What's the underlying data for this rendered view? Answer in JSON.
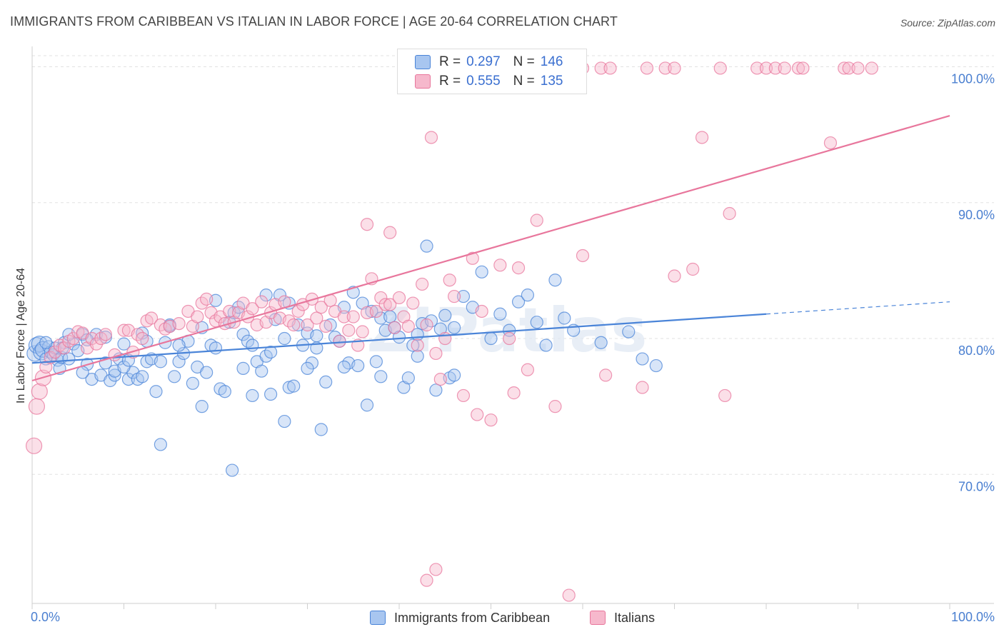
{
  "title": "IMMIGRANTS FROM CARIBBEAN VS ITALIAN IN LABOR FORCE | AGE 20-64 CORRELATION CHART",
  "source": "Source: ZipAtlas.com",
  "watermark": "ZIPatlas",
  "legend": {
    "rows": [
      {
        "r_label": "R =",
        "r_value": "0.297",
        "n_label": "N =",
        "n_value": "146"
      },
      {
        "r_label": "R =",
        "r_value": "0.555",
        "n_label": "N =",
        "n_value": "135"
      }
    ]
  },
  "bottom_legend": [
    "Immigrants from Caribbean",
    "Italians"
  ],
  "chart_data": {
    "type": "scatter",
    "title": "IMMIGRANTS FROM CARIBBEAN VS ITALIAN IN LABOR FORCE | AGE 20-64 CORRELATION CHART",
    "xlabel": "",
    "ylabel": "In Labor Force | Age 20-64",
    "xlim": [
      0,
      100
    ],
    "ylim": [
      60.5,
      101.5
    ],
    "x_tick_labels": [
      "0.0%",
      "100.0%"
    ],
    "y_ticks": [
      70,
      80,
      90,
      100
    ],
    "y_tick_labels": [
      "70.0%",
      "80.0%",
      "90.0%",
      "100.0%"
    ],
    "grid": "horizontal dashed",
    "legend_position": "top-center",
    "colors": {
      "caribbean": "#4a84d8",
      "italians": "#e8769c",
      "caribbean_fill": "#a8c6f0",
      "italians_fill": "#f6b8cc",
      "tick_label": "#4a7fd0"
    },
    "series": [
      {
        "name": "Immigrants from Caribbean",
        "r": 0.297,
        "n": 146,
        "trend": {
          "x0": 0,
          "y0": 78.2,
          "x1": 80,
          "y1": 81.8,
          "dash_x1": 100,
          "dash_y1": 82.7
        },
        "points": [
          [
            0.3,
            78.9
          ],
          [
            0.5,
            79.5
          ],
          [
            0.8,
            79.6
          ],
          [
            1.0,
            79.0
          ],
          [
            1.2,
            79.2
          ],
          [
            1.5,
            78.5
          ],
          [
            1.8,
            79.4
          ],
          [
            2.0,
            79.0
          ],
          [
            2.3,
            78.8
          ],
          [
            2.5,
            79.3
          ],
          [
            2.8,
            78.4
          ],
          [
            3.0,
            77.8
          ],
          [
            3.2,
            78.6
          ],
          [
            3.5,
            79.7
          ],
          [
            4.0,
            78.5
          ],
          [
            4.5,
            79.6
          ],
          [
            5.0,
            79.1
          ],
          [
            5.5,
            80.3
          ],
          [
            6.0,
            78.1
          ],
          [
            6.5,
            77.0
          ],
          [
            7.0,
            80.3
          ],
          [
            7.5,
            77.3
          ],
          [
            8.0,
            78.2
          ],
          [
            8.5,
            76.9
          ],
          [
            9.0,
            77.3
          ],
          [
            9.5,
            78.5
          ],
          [
            10.0,
            79.6
          ],
          [
            10.5,
            77.0
          ],
          [
            11.0,
            77.5
          ],
          [
            11.5,
            77.0
          ],
          [
            12.0,
            77.2
          ],
          [
            12.5,
            78.3
          ],
          [
            13.0,
            78.5
          ],
          [
            13.5,
            76.1
          ],
          [
            14.0,
            78.3
          ],
          [
            14.5,
            79.7
          ],
          [
            15.0,
            80.9
          ],
          [
            15.5,
            77.2
          ],
          [
            16.0,
            78.3
          ],
          [
            16.5,
            78.9
          ],
          [
            17.0,
            79.8
          ],
          [
            17.5,
            76.7
          ],
          [
            18.0,
            77.9
          ],
          [
            18.5,
            80.8
          ],
          [
            19.0,
            77.5
          ],
          [
            19.5,
            79.5
          ],
          [
            20.0,
            82.8
          ],
          [
            20.5,
            76.3
          ],
          [
            21.0,
            76.1
          ],
          [
            21.5,
            81.2
          ],
          [
            22.0,
            81.9
          ],
          [
            22.5,
            82.3
          ],
          [
            23.0,
            80.3
          ],
          [
            23.5,
            79.8
          ],
          [
            24.0,
            75.8
          ],
          [
            24.5,
            78.3
          ],
          [
            25.0,
            77.6
          ],
          [
            25.5,
            78.7
          ],
          [
            26.0,
            75.9
          ],
          [
            26.5,
            81.4
          ],
          [
            27.0,
            83.2
          ],
          [
            27.5,
            80.0
          ],
          [
            28.0,
            76.4
          ],
          [
            28.5,
            76.5
          ],
          [
            29.0,
            81.0
          ],
          [
            29.5,
            79.5
          ],
          [
            30.0,
            80.4
          ],
          [
            30.5,
            78.2
          ],
          [
            31.0,
            79.3
          ],
          [
            31.5,
            73.3
          ],
          [
            32.0,
            76.8
          ],
          [
            32.5,
            81.0
          ],
          [
            33.0,
            80.1
          ],
          [
            33.5,
            79.8
          ],
          [
            34.0,
            82.3
          ],
          [
            34.5,
            78.2
          ],
          [
            35.0,
            83.4
          ],
          [
            35.5,
            78.0
          ],
          [
            36.0,
            82.6
          ],
          [
            36.5,
            75.1
          ],
          [
            37.0,
            82.0
          ],
          [
            37.5,
            78.3
          ],
          [
            38.0,
            81.5
          ],
          [
            38.5,
            80.6
          ],
          [
            39.0,
            81.6
          ],
          [
            39.5,
            80.8
          ],
          [
            40.0,
            80.1
          ],
          [
            40.5,
            76.4
          ],
          [
            41.0,
            77.1
          ],
          [
            41.5,
            79.5
          ],
          [
            42.0,
            78.7
          ],
          [
            42.5,
            81.1
          ],
          [
            43.0,
            86.8
          ],
          [
            43.5,
            81.3
          ],
          [
            44.0,
            76.2
          ],
          [
            44.5,
            80.7
          ],
          [
            45.0,
            81.7
          ],
          [
            45.5,
            77.1
          ],
          [
            46.0,
            80.8
          ],
          [
            47.0,
            83.1
          ],
          [
            48.0,
            82.3
          ],
          [
            49.0,
            84.9
          ],
          [
            50.0,
            80.0
          ],
          [
            51.0,
            81.8
          ],
          [
            52.0,
            80.6
          ],
          [
            53.0,
            82.7
          ],
          [
            54.0,
            83.2
          ],
          [
            55.0,
            81.2
          ],
          [
            56.0,
            79.5
          ],
          [
            57.0,
            84.3
          ],
          [
            58.0,
            81.5
          ],
          [
            59.0,
            80.6
          ],
          [
            62.0,
            79.7
          ],
          [
            65.0,
            80.5
          ],
          [
            66.5,
            78.5
          ],
          [
            68.0,
            78.0
          ],
          [
            23.0,
            77.8
          ],
          [
            18.5,
            75.0
          ],
          [
            14.0,
            72.2
          ],
          [
            21.8,
            70.3
          ],
          [
            27.5,
            73.9
          ],
          [
            5.5,
            77.5
          ],
          [
            1.5,
            79.7
          ],
          [
            3.3,
            79.3
          ],
          [
            9.0,
            77.6
          ],
          [
            10.0,
            77.9
          ],
          [
            12.0,
            80.4
          ],
          [
            16.0,
            79.5
          ],
          [
            20.0,
            79.3
          ],
          [
            24.0,
            79.5
          ],
          [
            26.0,
            79.0
          ],
          [
            30.0,
            77.8
          ],
          [
            34.0,
            77.9
          ],
          [
            38.0,
            77.2
          ],
          [
            42.0,
            80.3
          ],
          [
            46.0,
            77.3
          ],
          [
            4.0,
            80.3
          ],
          [
            6.0,
            79.9
          ],
          [
            8.0,
            80.1
          ],
          [
            10.5,
            78.4
          ],
          [
            12.5,
            79.8
          ],
          [
            15.0,
            81.0
          ],
          [
            25.5,
            83.2
          ],
          [
            28.0,
            82.6
          ],
          [
            31.0,
            80.2
          ]
        ]
      },
      {
        "name": "Italians",
        "r": 0.555,
        "n": 135,
        "trend": {
          "x0": 0,
          "y0": 76.9,
          "x1": 100,
          "y1": 96.4
        },
        "points": [
          [
            0.2,
            72.1
          ],
          [
            0.5,
            75.0
          ],
          [
            0.8,
            76.1
          ],
          [
            1.2,
            77.1
          ],
          [
            1.5,
            77.9
          ],
          [
            2.0,
            78.6
          ],
          [
            2.5,
            79.0
          ],
          [
            3.0,
            79.5
          ],
          [
            3.5,
            79.3
          ],
          [
            4.0,
            79.8
          ],
          [
            4.5,
            80.0
          ],
          [
            5.0,
            80.5
          ],
          [
            5.5,
            80.4
          ],
          [
            6.0,
            79.3
          ],
          [
            6.5,
            80.0
          ],
          [
            7.0,
            79.6
          ],
          [
            7.5,
            80.0
          ],
          [
            8.0,
            80.3
          ],
          [
            9.0,
            78.8
          ],
          [
            10.0,
            80.6
          ],
          [
            10.5,
            80.6
          ],
          [
            11.0,
            79.0
          ],
          [
            11.5,
            80.3
          ],
          [
            12.0,
            80.0
          ],
          [
            12.5,
            81.3
          ],
          [
            13.0,
            81.5
          ],
          [
            14.0,
            81.0
          ],
          [
            14.5,
            80.7
          ],
          [
            15.0,
            80.9
          ],
          [
            16.0,
            81.1
          ],
          [
            17.0,
            82.0
          ],
          [
            17.5,
            80.9
          ],
          [
            18.0,
            81.6
          ],
          [
            18.5,
            82.6
          ],
          [
            19.0,
            82.9
          ],
          [
            19.5,
            81.9
          ],
          [
            20.0,
            81.3
          ],
          [
            20.5,
            81.6
          ],
          [
            21.0,
            81.1
          ],
          [
            21.5,
            82.0
          ],
          [
            22.0,
            81.2
          ],
          [
            22.5,
            81.9
          ],
          [
            23.0,
            82.6
          ],
          [
            23.5,
            81.6
          ],
          [
            24.0,
            82.2
          ],
          [
            24.5,
            81.0
          ],
          [
            25.0,
            82.7
          ],
          [
            25.5,
            81.2
          ],
          [
            26.0,
            81.9
          ],
          [
            26.5,
            82.5
          ],
          [
            27.0,
            81.5
          ],
          [
            27.5,
            82.7
          ],
          [
            28.0,
            81.3
          ],
          [
            28.5,
            81.0
          ],
          [
            29.0,
            82.0
          ],
          [
            29.5,
            82.5
          ],
          [
            30.0,
            81.0
          ],
          [
            30.5,
            82.9
          ],
          [
            31.0,
            81.5
          ],
          [
            31.5,
            82.3
          ],
          [
            32.0,
            80.9
          ],
          [
            32.5,
            82.8
          ],
          [
            33.0,
            82.0
          ],
          [
            33.5,
            79.8
          ],
          [
            34.0,
            81.6
          ],
          [
            34.5,
            80.6
          ],
          [
            35.0,
            81.6
          ],
          [
            35.5,
            79.5
          ],
          [
            36.0,
            80.5
          ],
          [
            36.5,
            81.9
          ],
          [
            37.0,
            84.4
          ],
          [
            37.5,
            82.0
          ],
          [
            38.0,
            83.0
          ],
          [
            38.5,
            82.5
          ],
          [
            39.0,
            82.5
          ],
          [
            39.5,
            80.8
          ],
          [
            40.0,
            83.0
          ],
          [
            40.5,
            81.6
          ],
          [
            41.0,
            80.9
          ],
          [
            41.5,
            82.6
          ],
          [
            42.0,
            79.5
          ],
          [
            42.5,
            84.0
          ],
          [
            43.0,
            81.0
          ],
          [
            44.0,
            78.9
          ],
          [
            44.5,
            77.0
          ],
          [
            45.0,
            80.0
          ],
          [
            45.5,
            84.3
          ],
          [
            46.0,
            83.1
          ],
          [
            47.0,
            75.8
          ],
          [
            48.0,
            85.9
          ],
          [
            48.5,
            74.4
          ],
          [
            49.0,
            82.0
          ],
          [
            50.0,
            74.0
          ],
          [
            51.0,
            85.4
          ],
          [
            52.0,
            80.0
          ],
          [
            53.0,
            85.2
          ],
          [
            54.0,
            77.7
          ],
          [
            55.0,
            88.7
          ],
          [
            57.0,
            75.0
          ],
          [
            60.0,
            86.1
          ],
          [
            62.5,
            77.3
          ],
          [
            66.5,
            76.4
          ],
          [
            70.0,
            84.6
          ],
          [
            72.0,
            85.1
          ],
          [
            75.5,
            75.8
          ],
          [
            87.0,
            94.4
          ],
          [
            76.0,
            89.2
          ],
          [
            57.0,
            99.9
          ],
          [
            60.0,
            99.9
          ],
          [
            62.0,
            99.9
          ],
          [
            63.0,
            99.9
          ],
          [
            67.0,
            99.9
          ],
          [
            69.0,
            99.9
          ],
          [
            70.0,
            99.9
          ],
          [
            75.0,
            99.9
          ],
          [
            79.0,
            99.9
          ],
          [
            80.0,
            99.9
          ],
          [
            81.0,
            99.9
          ],
          [
            82.0,
            99.9
          ],
          [
            83.5,
            99.9
          ],
          [
            84.0,
            99.9
          ],
          [
            88.5,
            99.9
          ],
          [
            89.0,
            99.9
          ],
          [
            90.0,
            99.9
          ],
          [
            91.5,
            99.9
          ],
          [
            56.0,
            99.9
          ],
          [
            54.0,
            99.9
          ],
          [
            43.5,
            94.8
          ],
          [
            73.0,
            94.8
          ],
          [
            36.5,
            88.4
          ],
          [
            39.0,
            87.8
          ],
          [
            43.0,
            62.2
          ],
          [
            44.0,
            63.0
          ],
          [
            58.5,
            61.1
          ],
          [
            52.5,
            76.0
          ]
        ]
      }
    ]
  }
}
